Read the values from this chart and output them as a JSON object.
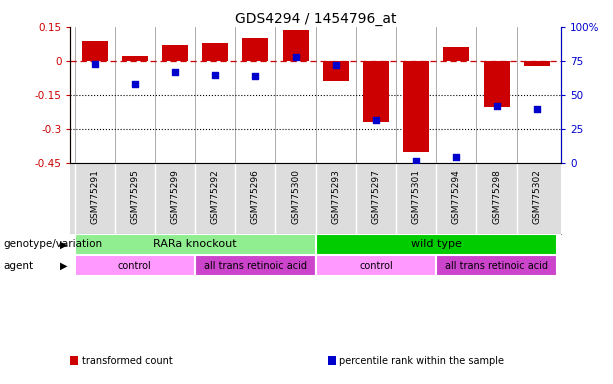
{
  "title": "GDS4294 / 1454796_at",
  "samples": [
    "GSM775291",
    "GSM775295",
    "GSM775299",
    "GSM775292",
    "GSM775296",
    "GSM775300",
    "GSM775293",
    "GSM775297",
    "GSM775301",
    "GSM775294",
    "GSM775298",
    "GSM775302"
  ],
  "bar_values": [
    0.09,
    0.02,
    0.07,
    0.08,
    0.1,
    0.135,
    -0.09,
    -0.27,
    -0.4,
    0.06,
    -0.2,
    -0.02
  ],
  "scatter_values": [
    73,
    58,
    67,
    65,
    64,
    78,
    72,
    32,
    2,
    5,
    42,
    40
  ],
  "ylim_left": [
    -0.45,
    0.15
  ],
  "ylim_right": [
    0,
    100
  ],
  "yticks_left": [
    0.15,
    0.0,
    -0.15,
    -0.3,
    -0.45
  ],
  "yticks_right": [
    100,
    75,
    50,
    25,
    0
  ],
  "ytick_labels_left": [
    "0.15",
    "0",
    "-0.15",
    "-0.3",
    "-0.45"
  ],
  "ytick_labels_right": [
    "100%",
    "75",
    "50",
    "25",
    "0"
  ],
  "bar_color": "#CC0000",
  "scatter_color": "#0000CC",
  "hline_y": 0.0,
  "hline_color": "#CC0000",
  "dotted_line_color": "#000000",
  "dotted_lines": [
    -0.15,
    -0.3
  ],
  "genotype_groups": [
    {
      "label": "RARa knockout",
      "start": 0,
      "end": 6,
      "color": "#90EE90"
    },
    {
      "label": "wild type",
      "start": 6,
      "end": 12,
      "color": "#00CC00"
    }
  ],
  "agent_groups": [
    {
      "label": "control",
      "start": 0,
      "end": 3,
      "color": "#FF99FF"
    },
    {
      "label": "all trans retinoic acid",
      "start": 3,
      "end": 6,
      "color": "#CC44CC"
    },
    {
      "label": "control",
      "start": 6,
      "end": 9,
      "color": "#FF99FF"
    },
    {
      "label": "all trans retinoic acid",
      "start": 9,
      "end": 12,
      "color": "#CC44CC"
    }
  ],
  "legend_items": [
    {
      "label": "transformed count",
      "color": "#CC0000"
    },
    {
      "label": "percentile rank within the sample",
      "color": "#0000CC"
    }
  ],
  "genotype_label": "genotype/variation",
  "agent_label": "agent",
  "background_color": "#FFFFFF",
  "plot_bg_color": "#FFFFFF",
  "sample_bg_color": "#DDDDDD",
  "separator_color": "#888888"
}
